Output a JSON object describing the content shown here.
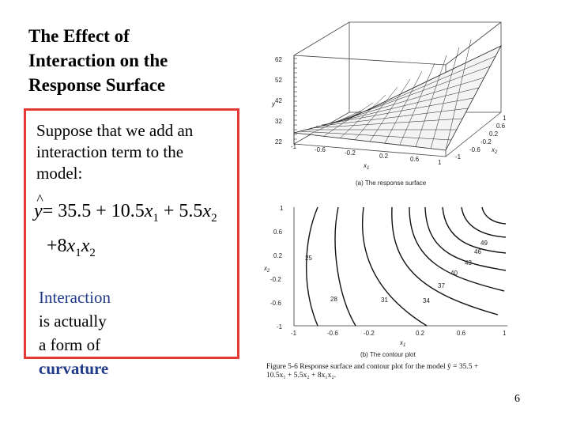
{
  "title_lines": [
    "The Effect of",
    "Interaction on the",
    "Response Surface"
  ],
  "intro_lines": [
    "Suppose that we add an",
    "interaction term to the",
    "model:"
  ],
  "equation": {
    "yhat": "y",
    "eq_line1_text": "= 35.5 + 10.5",
    "x1": "x",
    "sub1": "1",
    "plus55": " + 5.5",
    "x2": "x",
    "sub2": "2",
    "eq_line2_text": "+8",
    "x1b": "x",
    "sub1b": "1",
    "x2b": "x",
    "sub2b": "2"
  },
  "note": {
    "interaction": "Interaction",
    "rest1": " is actually",
    "line2_pre": "a form of ",
    "curvature": "curvature"
  },
  "colors": {
    "box_border": "#e53935",
    "keyword": "#1f3a8a"
  },
  "figure": {
    "surface": {
      "z_ticks": [
        "62",
        "52",
        "42",
        "32",
        "22"
      ],
      "z_label": "y",
      "x1_ticks": [
        "-1",
        "-0.6",
        "-0.2",
        "0.2",
        "0.6",
        "1"
      ],
      "x1_label": "x",
      "x1_label_sub": "1",
      "x2_ticks": [
        "1",
        "0.6",
        "0.2",
        "-0.2",
        "-0.6",
        "-1"
      ],
      "x2_label": "x",
      "x2_label_sub": "2",
      "caption": "(a) The response surface"
    },
    "contour": {
      "y_ticks": [
        "1",
        "0.6",
        "0.2",
        "-0.2",
        "-0.6",
        "-1"
      ],
      "y_label": "x",
      "y_label_sub": "2",
      "x_ticks": [
        "-1",
        "-0.6",
        "-0.2",
        "0.2",
        "0.6",
        "1"
      ],
      "x_label": "x",
      "x_label_sub": "1",
      "level_labels": [
        "25",
        "28",
        "31",
        "34",
        "37",
        "40",
        "43",
        "46",
        "49"
      ],
      "caption": "(b) The contour plot"
    },
    "caption_lines": [
      "Figure 5-6   Response surface and contour plot for the model ŷ = 35.5 +",
      "10.5x₁ + 5.5x₂ + 8x₁x₂."
    ]
  },
  "page_number": "6"
}
